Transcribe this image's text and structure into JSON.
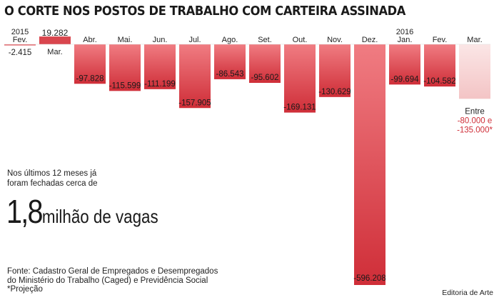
{
  "title": "O CORTE NOS POSTOS DE TRABALHO COM CARTEIRA ASSINADA",
  "chart_data": {
    "type": "bar",
    "title": "O CORTE NOS POSTOS DE TRABALHO COM CARTEIRA ASSINADA",
    "xlabel": "",
    "ylabel": "",
    "ylim": [
      -600000,
      20000
    ],
    "grid": false,
    "categories": [
      "Fev.",
      "Mar.",
      "Abr.",
      "Mai.",
      "Jun.",
      "Jul.",
      "Ago.",
      "Set.",
      "Out.",
      "Nov.",
      "Dez.",
      "Jan.",
      "Fev.",
      "Mar."
    ],
    "year_labels": [
      "2015",
      "2016"
    ],
    "year_positions": [
      0,
      11
    ],
    "values": [
      -2415,
      19282,
      -97828,
      -115599,
      -111199,
      -157905,
      -86543,
      -95602,
      -169131,
      -130629,
      -596208,
      -99694,
      -104582,
      -135000
    ],
    "value_labels": [
      "-2.415",
      "19.282",
      "-97.828",
      "-115.599",
      "-111.199",
      "-157.905",
      "-86.543",
      "-95.602",
      "-169.131",
      "-130.629",
      "-596.208",
      "-99.694",
      "-104.582",
      ""
    ],
    "projection": {
      "index": 13,
      "range": [
        -80000,
        -135000
      ],
      "label_lines": [
        "Entre",
        "-80.000 e",
        "-135.000*"
      ]
    },
    "colors": {
      "bar": "#d9464e",
      "bar_light": "#f07c82",
      "bar_dark": "#cf2e38",
      "projection": "#f9dddd"
    }
  },
  "note": {
    "lines": [
      "Nos últimos 12 meses já",
      "foram fechadas cerca de"
    ],
    "highlight_number": "1,8",
    "highlight_text": "milhão de vagas"
  },
  "footer": {
    "lines": [
      "Fonte: Cadastro Geral de Empregados e Desempregados",
      "do Ministério do Trabalho (Caged) e Previdência Social",
      "*Projeção"
    ]
  },
  "credit": "Editoria de Arte"
}
